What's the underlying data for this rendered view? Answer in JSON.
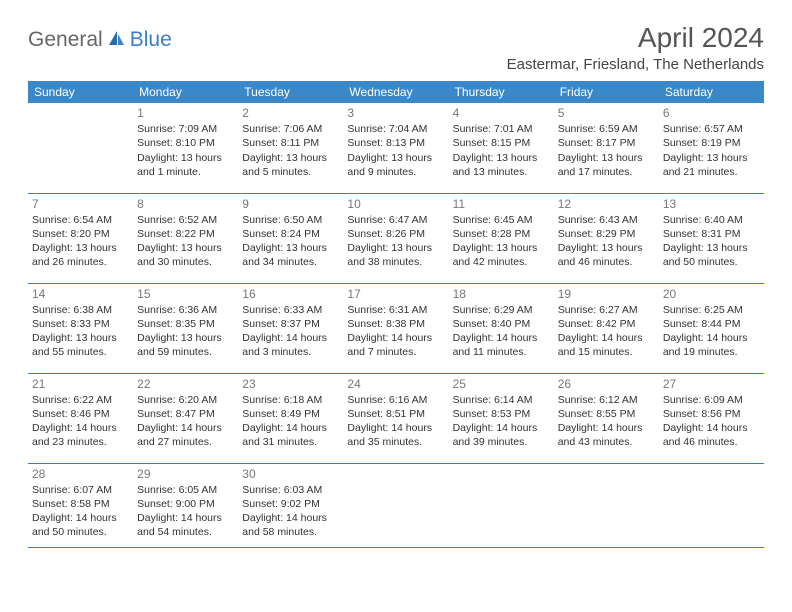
{
  "logo": {
    "textGeneral": "General",
    "textBlue": "Blue"
  },
  "title": "April 2024",
  "location": "Eastermar, Friesland, The Netherlands",
  "colors": {
    "headerBg": "#3a88c8",
    "headerText": "#ffffff",
    "rowBorder": "#3a7fc4",
    "bodyText": "#333333",
    "dayNum": "#777777",
    "logoGeneral": "#666666",
    "logoBlue": "#3a7fc4",
    "background": "#ffffff"
  },
  "dayHeaders": [
    "Sunday",
    "Monday",
    "Tuesday",
    "Wednesday",
    "Thursday",
    "Friday",
    "Saturday"
  ],
  "weeks": [
    [
      {
        "day": "",
        "sunrise": "",
        "sunset": "",
        "daylight1": "",
        "daylight2": ""
      },
      {
        "day": "1",
        "sunrise": "Sunrise: 7:09 AM",
        "sunset": "Sunset: 8:10 PM",
        "daylight1": "Daylight: 13 hours",
        "daylight2": "and 1 minute."
      },
      {
        "day": "2",
        "sunrise": "Sunrise: 7:06 AM",
        "sunset": "Sunset: 8:11 PM",
        "daylight1": "Daylight: 13 hours",
        "daylight2": "and 5 minutes."
      },
      {
        "day": "3",
        "sunrise": "Sunrise: 7:04 AM",
        "sunset": "Sunset: 8:13 PM",
        "daylight1": "Daylight: 13 hours",
        "daylight2": "and 9 minutes."
      },
      {
        "day": "4",
        "sunrise": "Sunrise: 7:01 AM",
        "sunset": "Sunset: 8:15 PM",
        "daylight1": "Daylight: 13 hours",
        "daylight2": "and 13 minutes."
      },
      {
        "day": "5",
        "sunrise": "Sunrise: 6:59 AM",
        "sunset": "Sunset: 8:17 PM",
        "daylight1": "Daylight: 13 hours",
        "daylight2": "and 17 minutes."
      },
      {
        "day": "6",
        "sunrise": "Sunrise: 6:57 AM",
        "sunset": "Sunset: 8:19 PM",
        "daylight1": "Daylight: 13 hours",
        "daylight2": "and 21 minutes."
      }
    ],
    [
      {
        "day": "7",
        "sunrise": "Sunrise: 6:54 AM",
        "sunset": "Sunset: 8:20 PM",
        "daylight1": "Daylight: 13 hours",
        "daylight2": "and 26 minutes."
      },
      {
        "day": "8",
        "sunrise": "Sunrise: 6:52 AM",
        "sunset": "Sunset: 8:22 PM",
        "daylight1": "Daylight: 13 hours",
        "daylight2": "and 30 minutes."
      },
      {
        "day": "9",
        "sunrise": "Sunrise: 6:50 AM",
        "sunset": "Sunset: 8:24 PM",
        "daylight1": "Daylight: 13 hours",
        "daylight2": "and 34 minutes."
      },
      {
        "day": "10",
        "sunrise": "Sunrise: 6:47 AM",
        "sunset": "Sunset: 8:26 PM",
        "daylight1": "Daylight: 13 hours",
        "daylight2": "and 38 minutes."
      },
      {
        "day": "11",
        "sunrise": "Sunrise: 6:45 AM",
        "sunset": "Sunset: 8:28 PM",
        "daylight1": "Daylight: 13 hours",
        "daylight2": "and 42 minutes."
      },
      {
        "day": "12",
        "sunrise": "Sunrise: 6:43 AM",
        "sunset": "Sunset: 8:29 PM",
        "daylight1": "Daylight: 13 hours",
        "daylight2": "and 46 minutes."
      },
      {
        "day": "13",
        "sunrise": "Sunrise: 6:40 AM",
        "sunset": "Sunset: 8:31 PM",
        "daylight1": "Daylight: 13 hours",
        "daylight2": "and 50 minutes."
      }
    ],
    [
      {
        "day": "14",
        "sunrise": "Sunrise: 6:38 AM",
        "sunset": "Sunset: 8:33 PM",
        "daylight1": "Daylight: 13 hours",
        "daylight2": "and 55 minutes."
      },
      {
        "day": "15",
        "sunrise": "Sunrise: 6:36 AM",
        "sunset": "Sunset: 8:35 PM",
        "daylight1": "Daylight: 13 hours",
        "daylight2": "and 59 minutes."
      },
      {
        "day": "16",
        "sunrise": "Sunrise: 6:33 AM",
        "sunset": "Sunset: 8:37 PM",
        "daylight1": "Daylight: 14 hours",
        "daylight2": "and 3 minutes."
      },
      {
        "day": "17",
        "sunrise": "Sunrise: 6:31 AM",
        "sunset": "Sunset: 8:38 PM",
        "daylight1": "Daylight: 14 hours",
        "daylight2": "and 7 minutes."
      },
      {
        "day": "18",
        "sunrise": "Sunrise: 6:29 AM",
        "sunset": "Sunset: 8:40 PM",
        "daylight1": "Daylight: 14 hours",
        "daylight2": "and 11 minutes."
      },
      {
        "day": "19",
        "sunrise": "Sunrise: 6:27 AM",
        "sunset": "Sunset: 8:42 PM",
        "daylight1": "Daylight: 14 hours",
        "daylight2": "and 15 minutes."
      },
      {
        "day": "20",
        "sunrise": "Sunrise: 6:25 AM",
        "sunset": "Sunset: 8:44 PM",
        "daylight1": "Daylight: 14 hours",
        "daylight2": "and 19 minutes."
      }
    ],
    [
      {
        "day": "21",
        "sunrise": "Sunrise: 6:22 AM",
        "sunset": "Sunset: 8:46 PM",
        "daylight1": "Daylight: 14 hours",
        "daylight2": "and 23 minutes."
      },
      {
        "day": "22",
        "sunrise": "Sunrise: 6:20 AM",
        "sunset": "Sunset: 8:47 PM",
        "daylight1": "Daylight: 14 hours",
        "daylight2": "and 27 minutes."
      },
      {
        "day": "23",
        "sunrise": "Sunrise: 6:18 AM",
        "sunset": "Sunset: 8:49 PM",
        "daylight1": "Daylight: 14 hours",
        "daylight2": "and 31 minutes."
      },
      {
        "day": "24",
        "sunrise": "Sunrise: 6:16 AM",
        "sunset": "Sunset: 8:51 PM",
        "daylight1": "Daylight: 14 hours",
        "daylight2": "and 35 minutes."
      },
      {
        "day": "25",
        "sunrise": "Sunrise: 6:14 AM",
        "sunset": "Sunset: 8:53 PM",
        "daylight1": "Daylight: 14 hours",
        "daylight2": "and 39 minutes."
      },
      {
        "day": "26",
        "sunrise": "Sunrise: 6:12 AM",
        "sunset": "Sunset: 8:55 PM",
        "daylight1": "Daylight: 14 hours",
        "daylight2": "and 43 minutes."
      },
      {
        "day": "27",
        "sunrise": "Sunrise: 6:09 AM",
        "sunset": "Sunset: 8:56 PM",
        "daylight1": "Daylight: 14 hours",
        "daylight2": "and 46 minutes."
      }
    ],
    [
      {
        "day": "28",
        "sunrise": "Sunrise: 6:07 AM",
        "sunset": "Sunset: 8:58 PM",
        "daylight1": "Daylight: 14 hours",
        "daylight2": "and 50 minutes."
      },
      {
        "day": "29",
        "sunrise": "Sunrise: 6:05 AM",
        "sunset": "Sunset: 9:00 PM",
        "daylight1": "Daylight: 14 hours",
        "daylight2": "and 54 minutes."
      },
      {
        "day": "30",
        "sunrise": "Sunrise: 6:03 AM",
        "sunset": "Sunset: 9:02 PM",
        "daylight1": "Daylight: 14 hours",
        "daylight2": "and 58 minutes."
      },
      {
        "day": "",
        "sunrise": "",
        "sunset": "",
        "daylight1": "",
        "daylight2": ""
      },
      {
        "day": "",
        "sunrise": "",
        "sunset": "",
        "daylight1": "",
        "daylight2": ""
      },
      {
        "day": "",
        "sunrise": "",
        "sunset": "",
        "daylight1": "",
        "daylight2": ""
      },
      {
        "day": "",
        "sunrise": "",
        "sunset": "",
        "daylight1": "",
        "daylight2": ""
      }
    ]
  ]
}
